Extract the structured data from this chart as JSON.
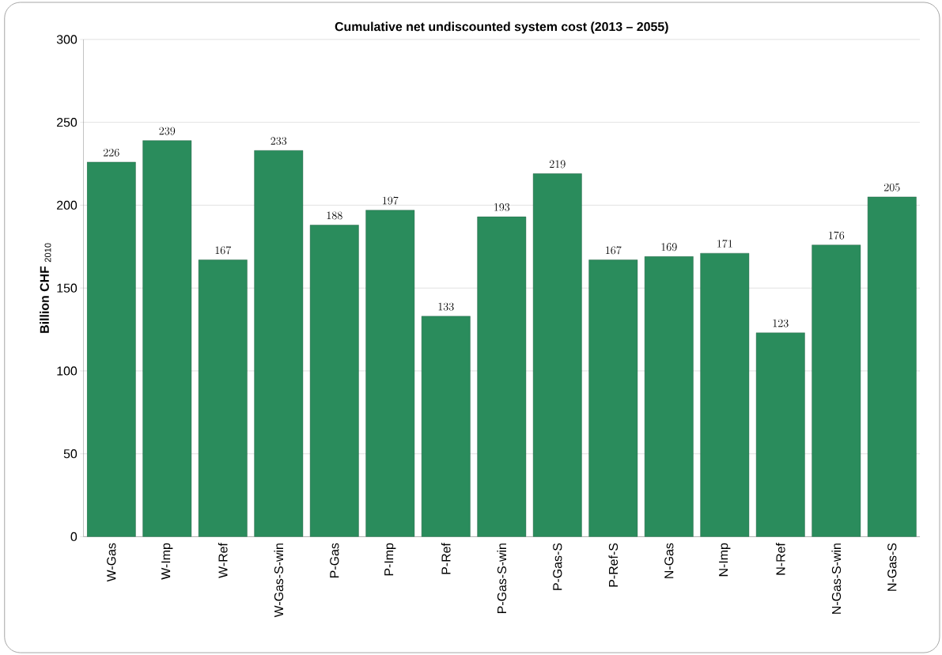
{
  "chart_data": {
    "type": "bar",
    "title": "Cumulative net undiscounted system cost (2013 – 2055)",
    "ylabel": "**Billion CHF** $_{2010}$",
    "categories": [
      "W-Gas",
      "W-Imp",
      "W-Ref",
      "W-Gas-S-win",
      "P-Gas",
      "P-Imp",
      "P-Ref",
      "P-Gas-S-win",
      "P-Gas-S",
      "P-Ref-S",
      "N-Gas",
      "N-Imp",
      "N-Ref",
      "N-Gas-S-win",
      "N-Gas-S"
    ],
    "values": [
      226,
      239,
      167,
      233,
      188,
      197,
      133,
      193,
      219,
      167,
      169,
      171,
      123,
      176,
      205
    ],
    "color": "#2a8c5c",
    "ylim": [
      0,
      300
    ],
    "yticks": [
      0,
      50,
      100,
      150,
      200,
      250,
      300
    ],
    "grid": "y",
    "data_labels": true
  }
}
